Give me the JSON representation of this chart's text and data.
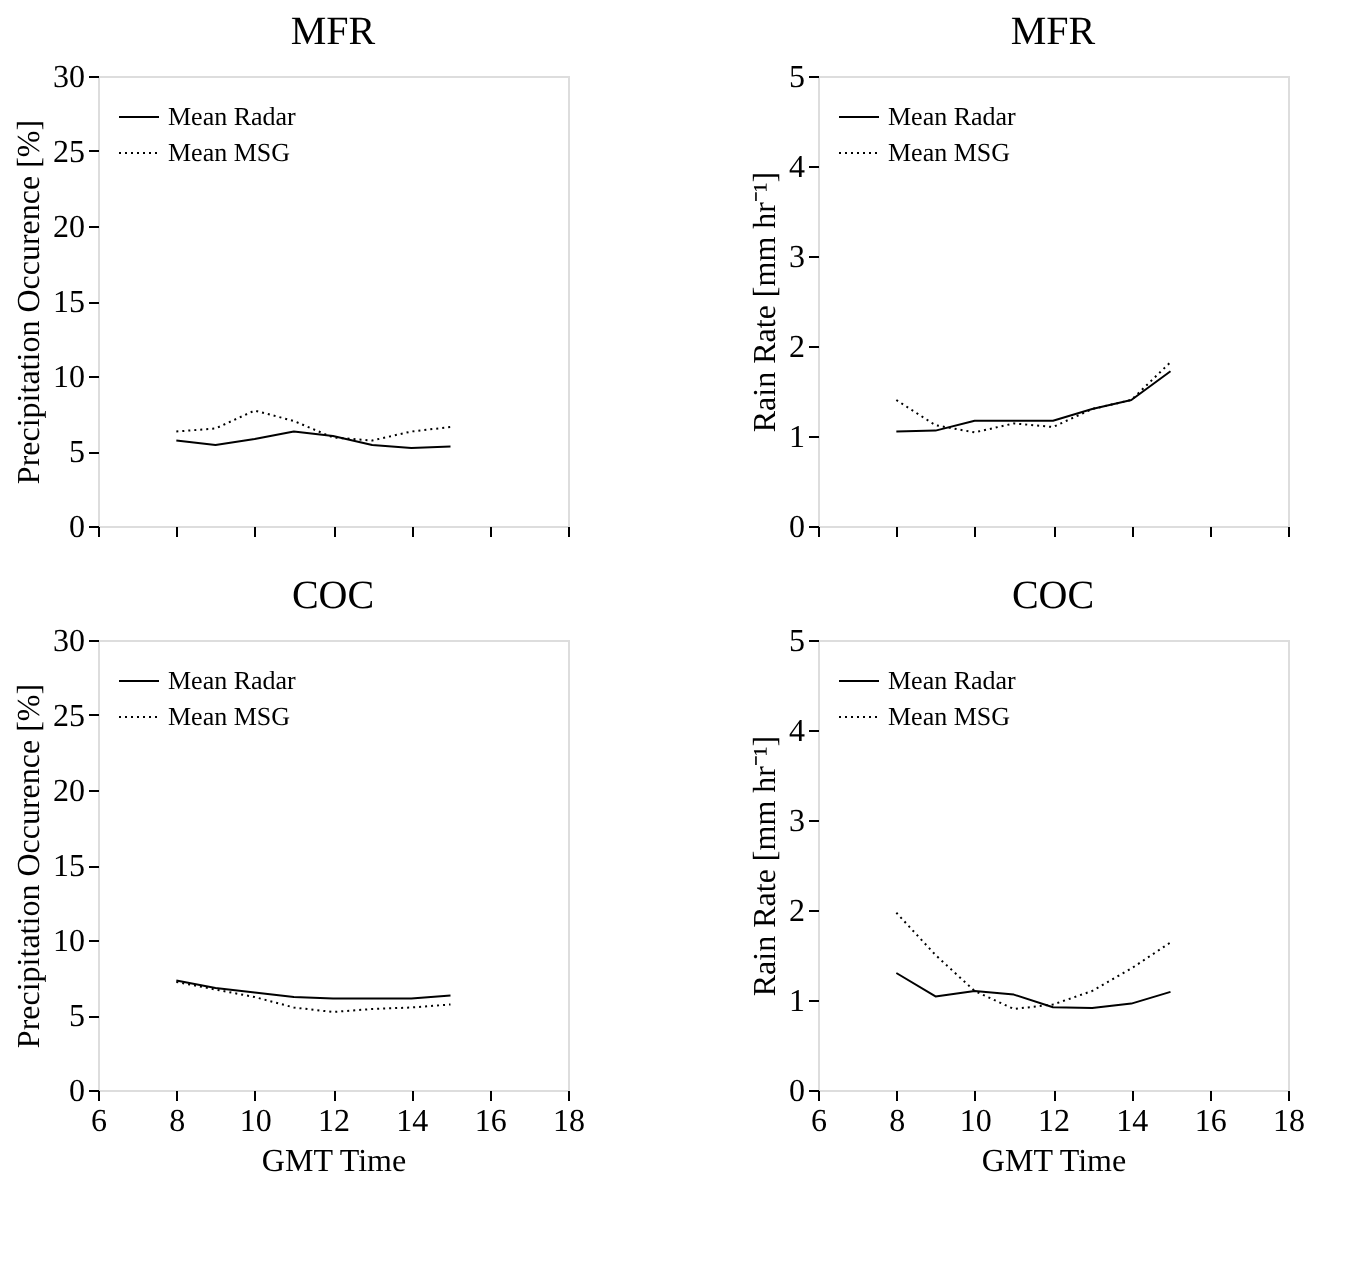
{
  "chart_data": [
    {
      "type": "line",
      "title": "MFR",
      "ylabel": "Precipitation Occurence [%]",
      "x": [
        8,
        9,
        10,
        11,
        12,
        13,
        14,
        15
      ],
      "xlim": [
        6,
        18
      ],
      "xticks": [
        6,
        8,
        10,
        12,
        14,
        16,
        18
      ],
      "ylim": [
        0,
        30
      ],
      "yticks": [
        0,
        5,
        10,
        15,
        20,
        25,
        30
      ],
      "tick_labels": "y",
      "legend": "top left",
      "series": [
        {
          "name": "Mean Radar",
          "color": "#000000",
          "line_style": "solid",
          "values": [
            5.7,
            5.4,
            5.8,
            6.3,
            6.0,
            5.4,
            5.2,
            5.3
          ]
        },
        {
          "name": "Mean MSG",
          "color": "#000000",
          "line_style": "dotted",
          "values": [
            6.3,
            6.5,
            7.7,
            7.0,
            5.9,
            5.7,
            6.3,
            6.6
          ]
        }
      ]
    },
    {
      "type": "line",
      "title": "MFR",
      "ylabel": "Rain Rate [mm hr⁻¹]",
      "x": [
        8,
        9,
        10,
        11,
        12,
        13,
        14,
        15
      ],
      "xlim": [
        6,
        18
      ],
      "xticks": [
        6,
        8,
        10,
        12,
        14,
        16,
        18
      ],
      "ylim": [
        0,
        5
      ],
      "yticks": [
        0,
        1,
        2,
        3,
        4,
        5
      ],
      "tick_labels": "y",
      "legend": "top left",
      "series": [
        {
          "name": "Mean Radar",
          "color": "#000000",
          "line_style": "solid",
          "values": [
            1.05,
            1.06,
            1.17,
            1.17,
            1.17,
            1.3,
            1.4,
            1.72
          ]
        },
        {
          "name": "Mean MSG",
          "color": "#000000",
          "line_style": "dotted",
          "values": [
            1.4,
            1.12,
            1.04,
            1.14,
            1.1,
            1.3,
            1.4,
            1.82
          ]
        }
      ]
    },
    {
      "type": "line",
      "title": "COC",
      "ylabel": "Precipitation Occurence [%]",
      "xlabel": "GMT Time",
      "x": [
        8,
        9,
        10,
        11,
        12,
        13,
        14,
        15
      ],
      "xlim": [
        6,
        18
      ],
      "xticks": [
        6,
        8,
        10,
        12,
        14,
        16,
        18
      ],
      "ylim": [
        0,
        30
      ],
      "yticks": [
        0,
        5,
        10,
        15,
        20,
        25,
        30
      ],
      "legend": "top left",
      "series": [
        {
          "name": "Mean Radar",
          "color": "#000000",
          "line_style": "solid",
          "values": [
            7.3,
            6.8,
            6.5,
            6.2,
            6.1,
            6.1,
            6.1,
            6.3
          ]
        },
        {
          "name": "Mean MSG",
          "color": "#000000",
          "line_style": "dotted",
          "values": [
            7.2,
            6.7,
            6.2,
            5.5,
            5.2,
            5.4,
            5.5,
            5.7
          ]
        }
      ]
    },
    {
      "type": "line",
      "title": "COC",
      "ylabel": "Rain Rate [mm hr⁻¹]",
      "xlabel": "GMT Time",
      "x": [
        8,
        9,
        10,
        11,
        12,
        13,
        14,
        15
      ],
      "xlim": [
        6,
        18
      ],
      "xticks": [
        6,
        8,
        10,
        12,
        14,
        16,
        18
      ],
      "ylim": [
        0,
        5
      ],
      "yticks": [
        0,
        1,
        2,
        3,
        4,
        5
      ],
      "legend": "top left",
      "series": [
        {
          "name": "Mean Radar",
          "color": "#000000",
          "line_style": "solid",
          "values": [
            1.3,
            1.04,
            1.1,
            1.06,
            0.92,
            0.91,
            0.96,
            1.09
          ]
        },
        {
          "name": "Mean MSG",
          "color": "#000000",
          "line_style": "dotted",
          "values": [
            1.97,
            1.5,
            1.1,
            0.9,
            0.95,
            1.1,
            1.35,
            1.64
          ]
        }
      ]
    }
  ]
}
